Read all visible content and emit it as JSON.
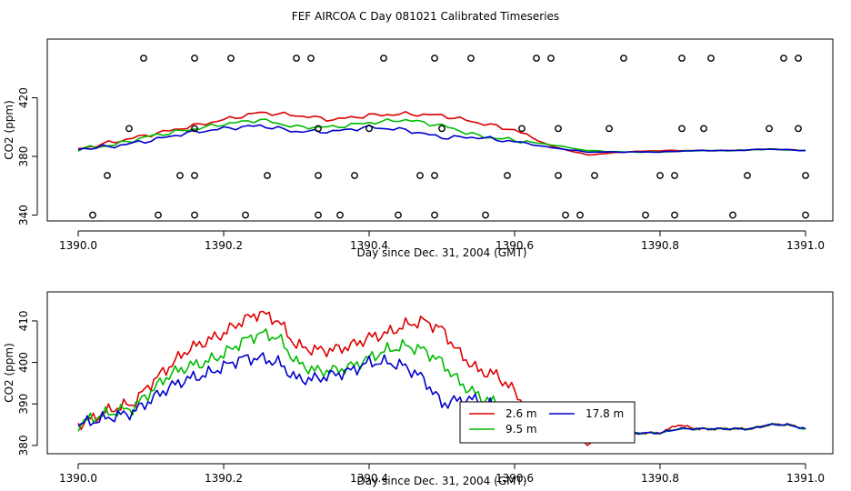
{
  "figure_title": "FEF AIRCOA C  Day 081021  Calibrated Timeseries",
  "colors": {
    "2.6 m": "#dd0000",
    "9.5 m": "#00bb00",
    "17.8 m": "#0000cc"
  },
  "chart_data": [
    {
      "type": "line",
      "title": "",
      "xlabel": "Day since Dec. 31, 2004 (GMT)",
      "ylabel": "CO2 (ppm)",
      "xlim": [
        1390.0,
        1391.0
      ],
      "ylim": [
        336,
        460
      ],
      "xticks": [
        1390.0,
        1390.2,
        1390.4,
        1390.6,
        1390.8,
        1391.0
      ],
      "xtick_labels": [
        "1390.0",
        "1390.2",
        "1390.4",
        "1390.6",
        "1390.8",
        "1391.0"
      ],
      "yticks": [
        340,
        380,
        420
      ],
      "ytick_labels": [
        "340",
        "380",
        "420"
      ],
      "grid": false,
      "series": [
        {
          "name": "2.6 m",
          "color": "#dd0000",
          "x": [
            1390.0,
            1390.05,
            1390.1,
            1390.15,
            1390.2,
            1390.25,
            1390.3,
            1390.35,
            1390.4,
            1390.45,
            1390.5,
            1390.55,
            1390.6,
            1390.65,
            1390.7,
            1390.75,
            1390.8,
            1390.85,
            1390.9,
            1390.95,
            1391.0
          ],
          "y": [
            385,
            390,
            395,
            400,
            405,
            410,
            408,
            405,
            408,
            409,
            408,
            403,
            398,
            387,
            381,
            383,
            384,
            384,
            384,
            385,
            384
          ]
        },
        {
          "name": "9.5 m",
          "color": "#00bb00",
          "x": [
            1390.0,
            1390.05,
            1390.1,
            1390.15,
            1390.2,
            1390.25,
            1390.3,
            1390.35,
            1390.4,
            1390.45,
            1390.5,
            1390.55,
            1390.6,
            1390.65,
            1390.7,
            1390.75,
            1390.8,
            1390.85,
            1390.9,
            1390.95,
            1391.0
          ],
          "y": [
            385,
            388,
            394,
            398,
            402,
            405,
            400,
            400,
            403,
            405,
            401,
            394,
            391,
            388,
            384,
            383,
            383,
            384,
            384,
            385,
            384
          ]
        },
        {
          "name": "17.8 m",
          "color": "#0000cc",
          "x": [
            1390.0,
            1390.05,
            1390.1,
            1390.15,
            1390.2,
            1390.25,
            1390.3,
            1390.35,
            1390.4,
            1390.45,
            1390.5,
            1390.55,
            1390.6,
            1390.65,
            1390.7,
            1390.75,
            1390.8,
            1390.85,
            1390.9,
            1390.95,
            1391.0
          ],
          "y": [
            385,
            387,
            391,
            396,
            399,
            401,
            397,
            397,
            400,
            398,
            393,
            393,
            390,
            386,
            383,
            383,
            383,
            384,
            384,
            385,
            384
          ]
        }
      ],
      "flag_rows": [
        {
          "y": 447,
          "x": [
            1390.09,
            1390.16,
            1390.21,
            1390.3,
            1390.32,
            1390.42,
            1390.49,
            1390.54,
            1390.63,
            1390.65,
            1390.75,
            1390.83,
            1390.87,
            1390.97,
            1390.99
          ]
        },
        {
          "y": 399,
          "x": [
            1390.07,
            1390.16,
            1390.33,
            1390.4,
            1390.5,
            1390.61,
            1390.66,
            1390.73,
            1390.83,
            1390.86,
            1390.95,
            1390.99
          ]
        },
        {
          "y": 367,
          "x": [
            1390.04,
            1390.14,
            1390.16,
            1390.26,
            1390.33,
            1390.38,
            1390.47,
            1390.49,
            1390.59,
            1390.66,
            1390.71,
            1390.8,
            1390.82,
            1390.92,
            1391.0
          ]
        },
        {
          "y": 340,
          "x": [
            1390.02,
            1390.11,
            1390.16,
            1390.23,
            1390.33,
            1390.36,
            1390.44,
            1390.49,
            1390.56,
            1390.67,
            1390.69,
            1390.78,
            1390.82,
            1390.9,
            1391.0
          ]
        }
      ]
    },
    {
      "type": "line",
      "title": "",
      "xlabel": "Day since Dec. 31, 2004 (GMT)",
      "ylabel": "CO2 (ppm)",
      "xlim": [
        1390.0,
        1391.0
      ],
      "ylim": [
        378,
        417
      ],
      "xticks": [
        1390.0,
        1390.2,
        1390.4,
        1390.6,
        1390.8,
        1391.0
      ],
      "xtick_labels": [
        "1390.0",
        "1390.2",
        "1390.4",
        "1390.6",
        "1390.8",
        "1391.0"
      ],
      "yticks": [
        380,
        390,
        400,
        410
      ],
      "ytick_labels": [
        "380",
        "390",
        "400",
        "410"
      ],
      "grid": false,
      "legend_position": "bottom-center",
      "series": [
        {
          "name": "2.6 m",
          "color": "#dd0000",
          "x": [
            1390.0,
            1390.025,
            1390.05,
            1390.075,
            1390.1,
            1390.125,
            1390.15,
            1390.175,
            1390.2,
            1390.225,
            1390.25,
            1390.275,
            1390.3,
            1390.325,
            1390.35,
            1390.375,
            1390.4,
            1390.425,
            1390.45,
            1390.475,
            1390.5,
            1390.525,
            1390.55,
            1390.575,
            1390.6,
            1390.625,
            1390.65,
            1390.675,
            1390.7,
            1390.725,
            1390.75,
            1390.775,
            1390.8,
            1390.825,
            1390.85,
            1390.875,
            1390.9,
            1390.925,
            1390.95,
            1390.975,
            1391.0
          ],
          "y": [
            385,
            387,
            389,
            390,
            395,
            399,
            403,
            405,
            407,
            410,
            412,
            410,
            404,
            403,
            403,
            404,
            406,
            407,
            409,
            410,
            408,
            402,
            398,
            397,
            393,
            387,
            386,
            385,
            380,
            384,
            382,
            383,
            383,
            385,
            384,
            384,
            384,
            384,
            385,
            385,
            384
          ]
        },
        {
          "name": "9.5 m",
          "color": "#00bb00",
          "x": [
            1390.0,
            1390.025,
            1390.05,
            1390.075,
            1390.1,
            1390.125,
            1390.15,
            1390.175,
            1390.2,
            1390.225,
            1390.25,
            1390.275,
            1390.3,
            1390.325,
            1390.35,
            1390.375,
            1390.4,
            1390.425,
            1390.45,
            1390.475,
            1390.5,
            1390.525,
            1390.55,
            1390.575,
            1390.6,
            1390.625,
            1390.65,
            1390.675,
            1390.7,
            1390.725,
            1390.75,
            1390.775,
            1390.8,
            1390.825,
            1390.85,
            1390.875,
            1390.9,
            1390.925,
            1390.95,
            1390.975,
            1391.0
          ],
          "y": [
            385,
            387,
            388,
            389,
            393,
            397,
            399,
            400,
            402,
            405,
            407,
            406,
            400,
            398,
            398,
            399,
            401,
            403,
            404,
            403,
            400,
            395,
            392,
            390,
            388,
            387,
            386,
            385,
            383,
            383,
            383,
            383,
            383,
            384,
            384,
            384,
            384,
            384,
            385,
            385,
            384
          ]
        },
        {
          "name": "17.8 m",
          "color": "#0000cc",
          "x": [
            1390.0,
            1390.025,
            1390.05,
            1390.075,
            1390.1,
            1390.125,
            1390.15,
            1390.175,
            1390.2,
            1390.225,
            1390.25,
            1390.275,
            1390.3,
            1390.325,
            1390.35,
            1390.375,
            1390.4,
            1390.425,
            1390.45,
            1390.475,
            1390.5,
            1390.525,
            1390.55,
            1390.575,
            1390.6,
            1390.625,
            1390.65,
            1390.675,
            1390.7,
            1390.725,
            1390.75,
            1390.775,
            1390.8,
            1390.825,
            1390.85,
            1390.875,
            1390.9,
            1390.925,
            1390.95,
            1390.975,
            1391.0
          ],
          "y": [
            385,
            386,
            387,
            388,
            391,
            394,
            396,
            397,
            399,
            401,
            401,
            400,
            396,
            396,
            397,
            398,
            400,
            400,
            399,
            396,
            390,
            391,
            391,
            389,
            388,
            387,
            386,
            385,
            383,
            383,
            383,
            383,
            383,
            384,
            384,
            384,
            384,
            384,
            385,
            385,
            384
          ]
        }
      ],
      "legend": [
        {
          "label": "2.6 m",
          "color": "#dd0000"
        },
        {
          "label": "9.5 m",
          "color": "#00bb00"
        },
        {
          "label": "17.8 m",
          "color": "#0000cc"
        }
      ]
    }
  ]
}
